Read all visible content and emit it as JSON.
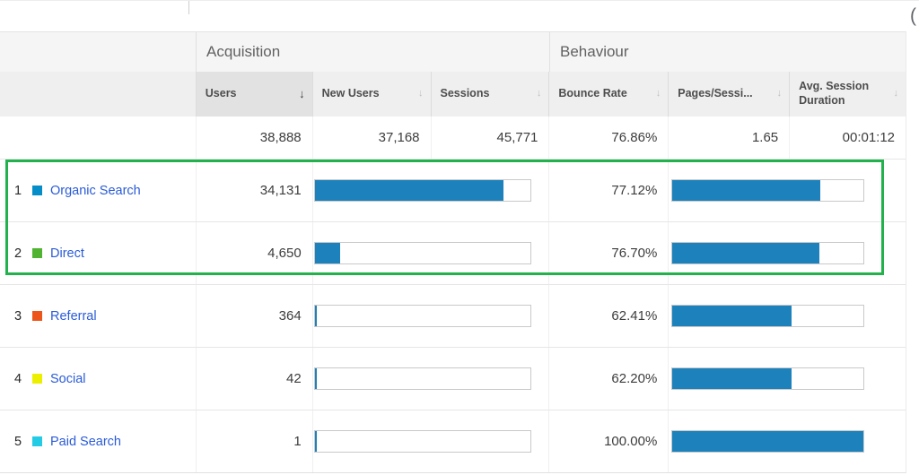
{
  "meta": {
    "partial_glyph": "("
  },
  "colors": {
    "bar": "#1d82bc",
    "link": "#2a5bd7",
    "highlight": "#22b14c"
  },
  "icons": {
    "sort_active": "↓",
    "sort_idle": "↓"
  },
  "groups": [
    {
      "label": "Acquisition"
    },
    {
      "label": "Behaviour"
    }
  ],
  "columns": [
    {
      "label": "Users",
      "sorted": true
    },
    {
      "label": "New Users",
      "sorted": false
    },
    {
      "label": "Sessions",
      "sorted": false
    },
    {
      "label": "Bounce Rate",
      "sorted": false
    },
    {
      "label": "Pages/Sessi...",
      "sorted": false
    },
    {
      "label": "Avg. Session Duration",
      "sorted": false
    }
  ],
  "totals": {
    "users": "38,888",
    "new_users": "37,168",
    "sessions": "45,771",
    "bounce_rate": "76.86%",
    "pages_per_session": "1.65",
    "avg_session_duration": "00:01:12"
  },
  "rows": [
    {
      "rank": "1",
      "channel": "Organic Search",
      "swatch": "#058dc7",
      "users": "34,131",
      "users_bar_pct": 87.8,
      "bounce_rate": "77.12%",
      "bounce_bar_pct": 77.12
    },
    {
      "rank": "2",
      "channel": "Direct",
      "swatch": "#50b432",
      "users": "4,650",
      "users_bar_pct": 12.0,
      "bounce_rate": "76.70%",
      "bounce_bar_pct": 76.7
    },
    {
      "rank": "3",
      "channel": "Referral",
      "swatch": "#ed561b",
      "users": "364",
      "users_bar_pct": 1.0,
      "bounce_rate": "62.41%",
      "bounce_bar_pct": 62.41
    },
    {
      "rank": "4",
      "channel": "Social",
      "swatch": "#edef00",
      "users": "42",
      "users_bar_pct": 0.8,
      "bounce_rate": "62.20%",
      "bounce_bar_pct": 62.2
    },
    {
      "rank": "5",
      "channel": "Paid Search",
      "swatch": "#24cbe5",
      "users": "1",
      "users_bar_pct": 0.8,
      "bounce_rate": "100.00%",
      "bounce_bar_pct": 100
    }
  ]
}
